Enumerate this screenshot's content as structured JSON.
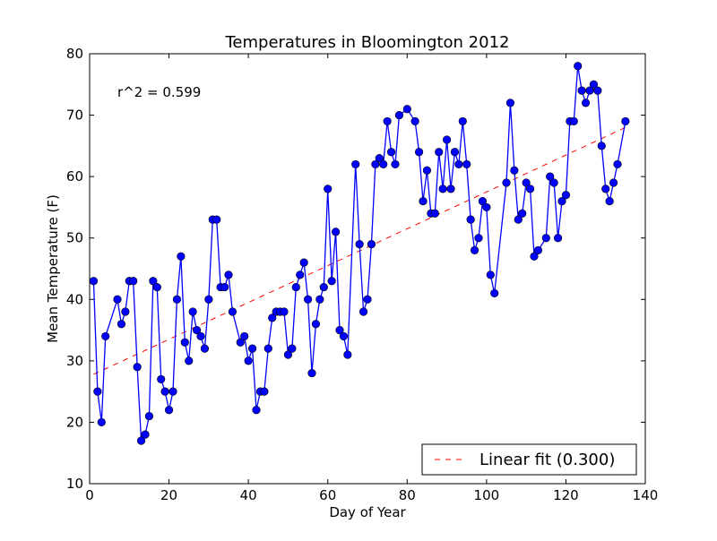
{
  "chart_data": {
    "type": "line",
    "title": "Temperatures in Bloomington 2012",
    "xlabel": "Day of Year",
    "ylabel": "Mean Temperature (F)",
    "xlim": [
      0,
      140
    ],
    "ylim": [
      10,
      80
    ],
    "xticks": [
      0,
      20,
      40,
      60,
      80,
      100,
      120,
      140
    ],
    "yticks": [
      10,
      20,
      30,
      40,
      50,
      60,
      70,
      80
    ],
    "grid": false,
    "annotation": "r^2 = 0.599",
    "legend": {
      "position": "bottom-right",
      "label": "Linear fit (0.300)"
    },
    "series": [
      {
        "name": "Mean Temperature",
        "color": "#0000ff",
        "x": [
          1,
          2,
          3,
          4,
          7,
          8,
          9,
          10,
          11,
          12,
          13,
          14,
          15,
          16,
          17,
          18,
          19,
          20,
          21,
          22,
          23,
          24,
          25,
          26,
          27,
          28,
          29,
          30,
          31,
          32,
          33,
          34,
          35,
          36,
          38,
          39,
          40,
          41,
          42,
          43,
          44,
          45,
          46,
          47,
          48,
          49,
          50,
          51,
          52,
          53,
          54,
          55,
          56,
          57,
          58,
          59,
          60,
          61,
          62,
          63,
          64,
          65,
          67,
          68,
          69,
          70,
          71,
          72,
          73,
          74,
          75,
          76,
          77,
          78,
          80,
          82,
          83,
          84,
          85,
          86,
          87,
          88,
          89,
          90,
          91,
          92,
          93,
          94,
          95,
          96,
          97,
          98,
          99,
          100,
          101,
          102,
          105,
          106,
          107,
          108,
          109,
          110,
          111,
          112,
          113,
          115,
          116,
          117,
          118,
          119,
          120,
          121,
          122,
          123,
          124,
          125,
          126,
          127,
          128,
          129,
          130,
          131,
          132,
          133,
          135
        ],
        "y": [
          43,
          25,
          20,
          34,
          40,
          36,
          38,
          43,
          43,
          29,
          17,
          18,
          21,
          43,
          42,
          27,
          25,
          22,
          25,
          40,
          47,
          33,
          30,
          38,
          35,
          34,
          32,
          40,
          53,
          53,
          42,
          42,
          44,
          38,
          33,
          34,
          30,
          32,
          22,
          25,
          25,
          32,
          37,
          38,
          38,
          38,
          31,
          32,
          42,
          44,
          46,
          40,
          28,
          36,
          40,
          42,
          58,
          43,
          51,
          35,
          34,
          31,
          62,
          49,
          38,
          40,
          49,
          62,
          63,
          62,
          69,
          64,
          62,
          70,
          71,
          69,
          64,
          56,
          61,
          54,
          54,
          64,
          58,
          66,
          58,
          64,
          62,
          69,
          62,
          53,
          48,
          50,
          56,
          55,
          44,
          41,
          59,
          72,
          61,
          53,
          54,
          59,
          58,
          47,
          48,
          50,
          60,
          59,
          50,
          56,
          57,
          69,
          69,
          78,
          74,
          72,
          74,
          75,
          74,
          65,
          58,
          56,
          59,
          62,
          69
        ]
      },
      {
        "name": "Linear fit (0.300)",
        "color": "#ff0000",
        "style": "dashed",
        "slope": 0.3,
        "intercept": 27.5,
        "x_range": [
          1,
          135
        ]
      }
    ]
  }
}
